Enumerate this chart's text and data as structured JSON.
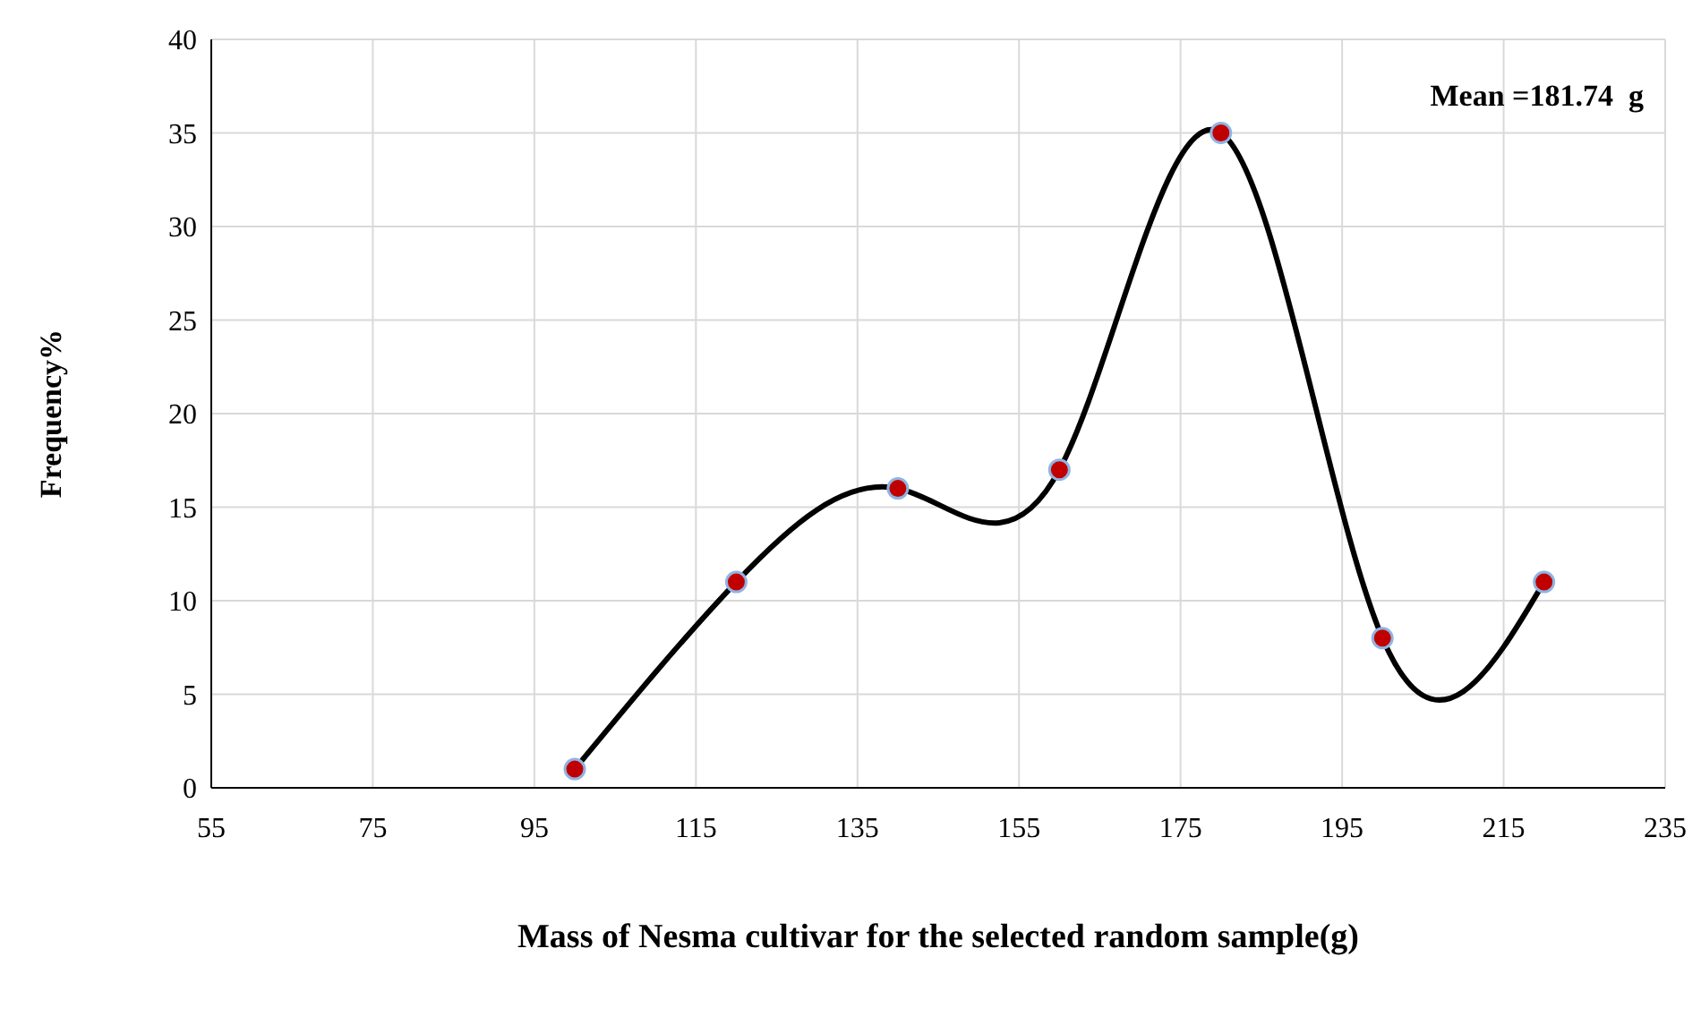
{
  "chart_data": {
    "type": "line",
    "xlabel": "Mass of Nesma cultivar  for the selected random sample(g)",
    "ylabel": "Frequency%",
    "x": [
      100,
      120,
      140,
      160,
      180,
      200,
      220
    ],
    "series": [
      {
        "color": "#000000",
        "values": [
          1,
          11,
          16,
          17,
          35,
          8,
          11
        ]
      }
    ],
    "xlim": [
      55,
      235
    ],
    "xticks": [
      55,
      75,
      95,
      115,
      135,
      155,
      175,
      195,
      215,
      235
    ],
    "ylim": [
      0,
      40
    ],
    "yticks": [
      0,
      5,
      10,
      15,
      20,
      25,
      30,
      35,
      40
    ],
    "grid": true,
    "marker": "circle",
    "line_style": "solid",
    "annotations": [
      "Mean =181.74  g"
    ]
  }
}
